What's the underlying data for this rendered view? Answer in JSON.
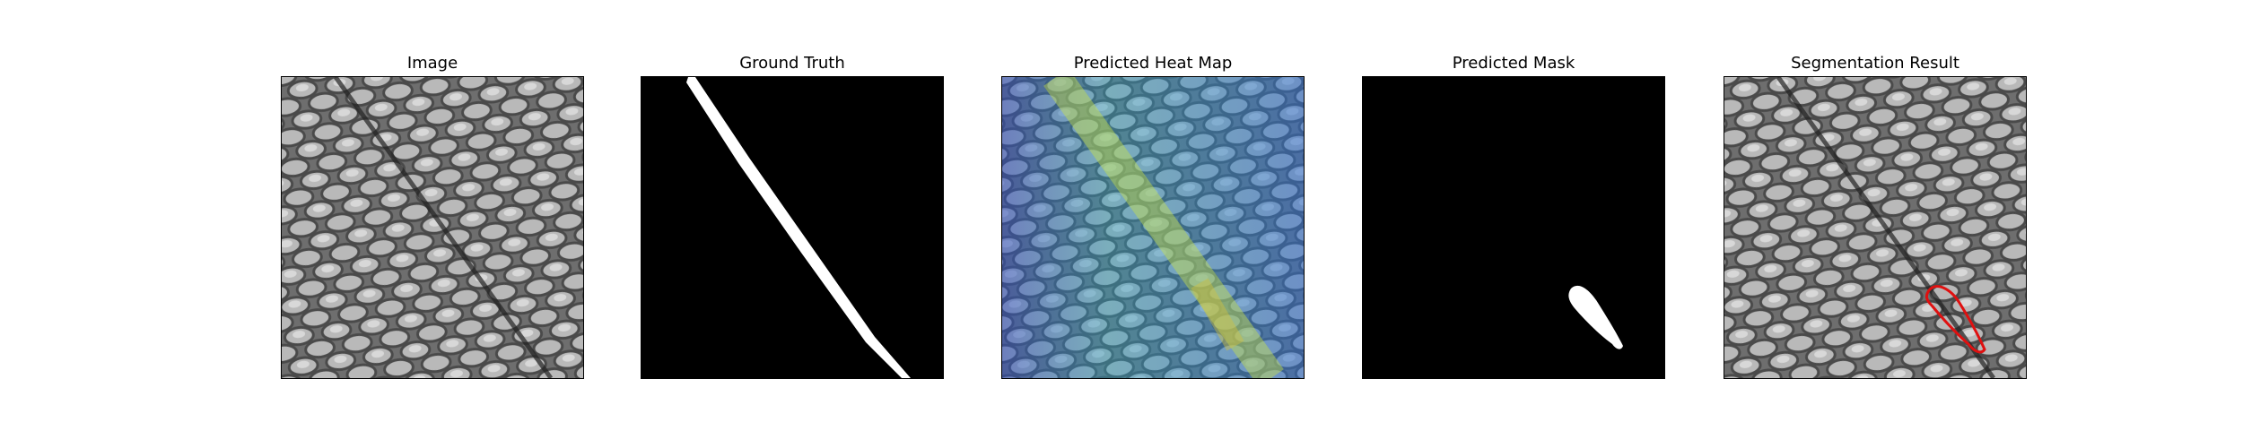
{
  "figure": {
    "panels": [
      {
        "title": "Image"
      },
      {
        "title": "Ground Truth"
      },
      {
        "title": "Predicted Heat Map"
      },
      {
        "title": "Predicted Mask"
      },
      {
        "title": "Segmentation Result"
      }
    ]
  },
  "colors": {
    "mask_bg": "#000000",
    "mask_fg": "#ffffff",
    "contour": "#e01010",
    "heat_low": "#3b3fb8",
    "heat_high": "#d8e040"
  }
}
